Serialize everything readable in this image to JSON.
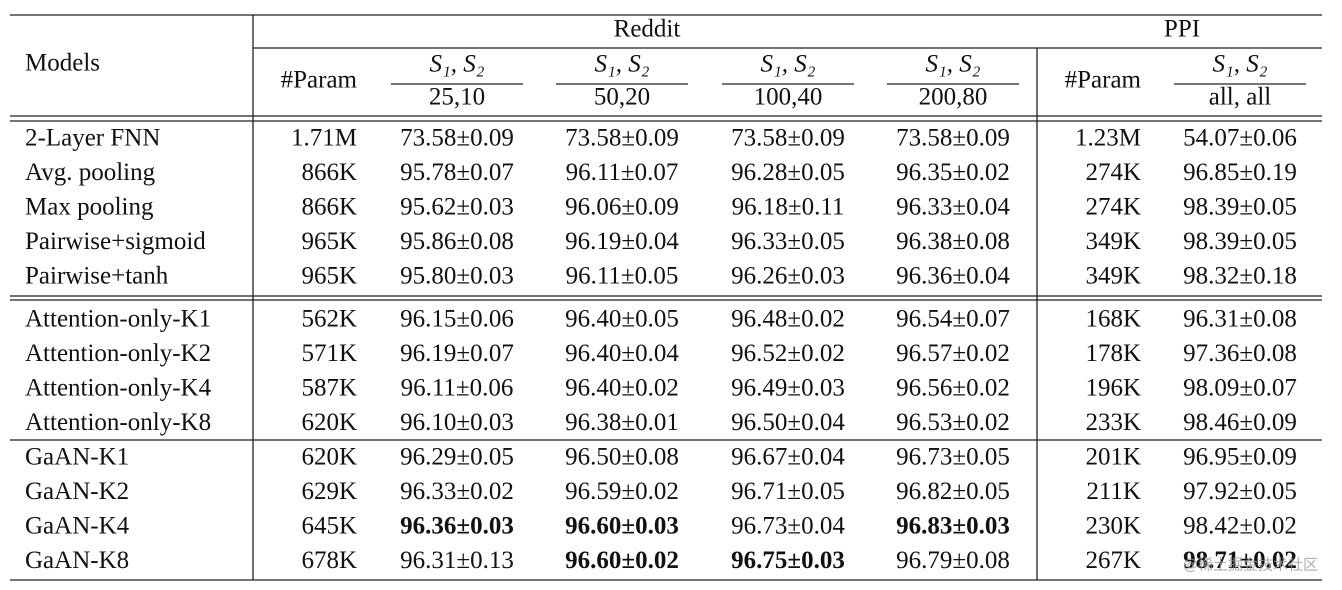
{
  "header": {
    "models": "Models",
    "groups": [
      "Reddit",
      "PPI"
    ],
    "columns": [
      {
        "label": "#Param"
      },
      {
        "label": "S₁, S₂",
        "sub": "25,10"
      },
      {
        "label": "S₁, S₂",
        "sub": "50,20"
      },
      {
        "label": "S₁, S₂",
        "sub": "100,40"
      },
      {
        "label": "S₁, S₂",
        "sub": "200,80"
      },
      {
        "label": "#Param"
      },
      {
        "label": "S₁, S₂",
        "sub": "all, all"
      }
    ]
  },
  "row_groups": [
    [
      {
        "model": "2-Layer FNN",
        "cells": [
          "1.71M",
          "73.58±0.09",
          "73.58±0.09",
          "73.58±0.09",
          "73.58±0.09",
          "1.23M",
          "54.07±0.06"
        ]
      },
      {
        "model": "Avg. pooling",
        "cells": [
          "866K",
          "95.78±0.07",
          "96.11±0.07",
          "96.28±0.05",
          "96.35±0.02",
          "274K",
          "96.85±0.19"
        ]
      },
      {
        "model": "Max pooling",
        "cells": [
          "866K",
          "95.62±0.03",
          "96.06±0.09",
          "96.18±0.11",
          "96.33±0.04",
          "274K",
          "98.39±0.05"
        ]
      },
      {
        "model": "Pairwise+sigmoid",
        "cells": [
          "965K",
          "95.86±0.08",
          "96.19±0.04",
          "96.33±0.05",
          "96.38±0.08",
          "349K",
          "98.39±0.05"
        ]
      },
      {
        "model": "Pairwise+tanh",
        "cells": [
          "965K",
          "95.80±0.03",
          "96.11±0.05",
          "96.26±0.03",
          "96.36±0.04",
          "349K",
          "98.32±0.18"
        ]
      }
    ],
    [
      {
        "model": "Attention-only-K1",
        "cells": [
          "562K",
          "96.15±0.06",
          "96.40±0.05",
          "96.48±0.02",
          "96.54±0.07",
          "168K",
          "96.31±0.08"
        ]
      },
      {
        "model": "Attention-only-K2",
        "cells": [
          "571K",
          "96.19±0.07",
          "96.40±0.04",
          "96.52±0.02",
          "96.57±0.02",
          "178K",
          "97.36±0.08"
        ]
      },
      {
        "model": "Attention-only-K4",
        "cells": [
          "587K",
          "96.11±0.06",
          "96.40±0.02",
          "96.49±0.03",
          "96.56±0.02",
          "196K",
          "98.09±0.07"
        ]
      },
      {
        "model": "Attention-only-K8",
        "cells": [
          "620K",
          "96.10±0.03",
          "96.38±0.01",
          "96.50±0.04",
          "96.53±0.02",
          "233K",
          "98.46±0.09"
        ]
      }
    ],
    [
      {
        "model": "GaAN-K1",
        "cells": [
          "620K",
          "96.29±0.05",
          "96.50±0.08",
          "96.67±0.04",
          "96.73±0.05",
          "201K",
          "96.95±0.09"
        ]
      },
      {
        "model": "GaAN-K2",
        "cells": [
          "629K",
          "96.33±0.02",
          "96.59±0.02",
          "96.71±0.05",
          "96.82±0.05",
          "211K",
          "97.92±0.05"
        ]
      },
      {
        "model": "GaAN-K4",
        "cells": [
          "645K",
          {
            "text": "96.36±0.03",
            "bold": true
          },
          {
            "text": "96.60±0.03",
            "bold": true
          },
          "96.73±0.04",
          {
            "text": "96.83±0.03",
            "bold": true
          },
          "230K",
          "98.42±0.02"
        ]
      },
      {
        "model": "GaAN-K8",
        "cells": [
          "678K",
          "96.31±0.13",
          {
            "text": "96.60±0.02",
            "bold": true
          },
          {
            "text": "96.75±0.03",
            "bold": true
          },
          "96.79±0.08",
          "267K",
          {
            "text": "98.71±0.02",
            "bold": true
          }
        ]
      }
    ]
  ],
  "watermark": "@稀土掘金技术社区"
}
